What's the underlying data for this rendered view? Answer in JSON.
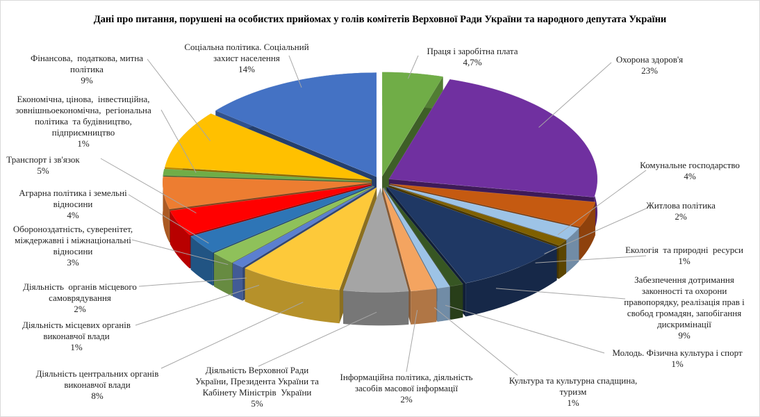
{
  "chart_data": {
    "type": "pie",
    "style": "3d-exploded",
    "title": "Дані про питання, порушені  на особистих прийомах у голів комітетів Верховної Ради України та народного депутата України",
    "slices": [
      {
        "label": "Праця і заробітна плата",
        "value": 4.7,
        "value_label": "4,7%",
        "color": "#70ad47"
      },
      {
        "label": "Охорона здоров'я",
        "value": 23,
        "value_label": "23%",
        "color": "#7030a0"
      },
      {
        "label": "Комунальне господарство",
        "value": 4,
        "value_label": "4%",
        "color": "#c55a11"
      },
      {
        "label": "Житлова політика",
        "value": 2,
        "value_label": "2%",
        "color": "#9dc3e6"
      },
      {
        "label": "Екологія  та природні  ресурси",
        "value": 1,
        "value_label": "1%",
        "color": "#7f6000"
      },
      {
        "label": "Забезпечення дотримання\nзаконності та охорони\nправопорядку, реалізація прав і\nсвобод громадян, запобігання\nдискримінації",
        "value": 9,
        "value_label": "9%",
        "color": "#1f3864"
      },
      {
        "label": "Молодь. Фізична культура і спорт",
        "value": 1,
        "value_label": "1%",
        "color": "#375623"
      },
      {
        "label": "Культура та культурна спадщина,\nтуризм",
        "value": 1,
        "value_label": "1%",
        "color": "#9dc3e6"
      },
      {
        "label": "Інформаційна політика, діяльність\nзасобів масової інформації",
        "value": 2,
        "value_label": "2%",
        "color": "#f4a460"
      },
      {
        "label": "Діяльність Верховної Ради\nУкраїни, Президента України та\nКабінету Міністрів  України",
        "value": 5,
        "value_label": "5%",
        "color": "#a5a5a5"
      },
      {
        "label": "Діяльність центральних органів\nвиконавчої влади",
        "value": 8,
        "value_label": "8%",
        "color": "#fdc93a"
      },
      {
        "label": "Діяльність місцевих органів\nвиконавчої влади",
        "value": 1,
        "value_label": "1%",
        "color": "#5b7fd0"
      },
      {
        "label": "Діяльність  органів місцевого\nсамоврядування",
        "value": 2,
        "value_label": "2%",
        "color": "#8fc15a"
      },
      {
        "label": "Обороноздатність, суверенітет,\nміждержавні і міжнаціональні\nвідносини",
        "value": 3,
        "value_label": "3%",
        "color": "#2e75b6"
      },
      {
        "label": "Аграрна політика і земельні\nвідносини",
        "value": 4,
        "value_label": "4%",
        "color": "#ff0000"
      },
      {
        "label": "Транспорт і зв'язок",
        "value": 5,
        "value_label": "5%",
        "color": "#ed7d31"
      },
      {
        "label": "Економічна, цінова,  інвестиційна,\nзовнішньоекономічна,  регіональна\nполітика  та будівництво,\nпідприємництво",
        "value": 1,
        "value_label": "1%",
        "color": "#70ad47"
      },
      {
        "label": "Фінансова,  податкова, митна\nполітика",
        "value": 9,
        "value_label": "9%",
        "color": "#ffc000"
      },
      {
        "label": "Соціальна політика. Соціальний\nзахист населення",
        "value": 14,
        "value_label": "14%",
        "color": "#4472c4"
      }
    ]
  }
}
